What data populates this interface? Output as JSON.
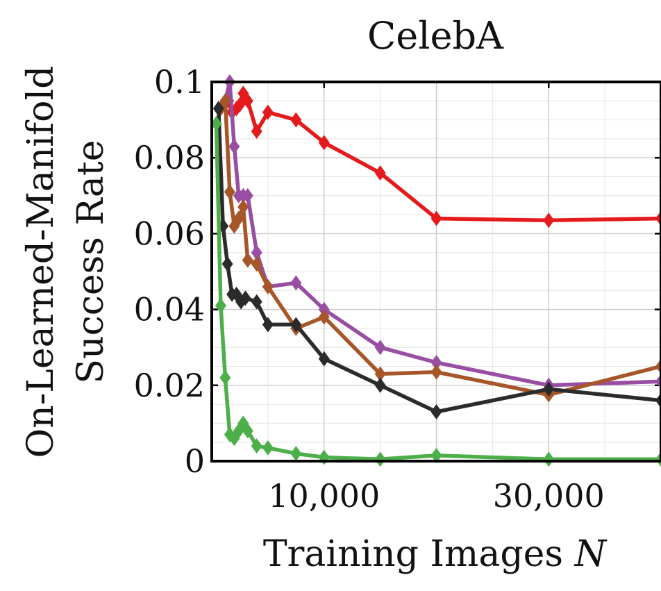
{
  "chart_data": {
    "type": "line",
    "title": "CelebA",
    "xlabel": "Training Images N",
    "ylabel_line1": "On-Learned-Manifold",
    "ylabel_line2": "Success Rate",
    "xlim": [
      0,
      40000
    ],
    "ylim": [
      0,
      0.1
    ],
    "x_ticks": [
      10000,
      30000
    ],
    "x_tick_labels": [
      "10,000",
      "30,000"
    ],
    "y_ticks": [
      0,
      0.02,
      0.04,
      0.06,
      0.08,
      0.1
    ],
    "y_tick_labels": [
      "0",
      "0.02",
      "0.04",
      "0.06",
      "0.08",
      "0.1"
    ],
    "grid": true,
    "marker": "diamond",
    "series": [
      {
        "color": "#e41a1c",
        "x": [
          1500,
          1800,
          2200,
          2500,
          2800,
          3200,
          4000,
          5000,
          7500,
          10000,
          15000,
          20000,
          30000,
          40000
        ],
        "y": [
          0.095,
          0.092,
          0.093,
          0.094,
          0.097,
          0.095,
          0.087,
          0.092,
          0.09,
          0.084,
          0.076,
          0.064,
          0.0635,
          0.064
        ]
      },
      {
        "color": "#984ea3",
        "x": [
          1200,
          1600,
          2000,
          2400,
          2800,
          3200,
          4000,
          5000,
          7500,
          10000,
          15000,
          20000,
          30000,
          40000
        ],
        "y": [
          0.095,
          0.1,
          0.083,
          0.07,
          0.07,
          0.07,
          0.055,
          0.046,
          0.047,
          0.04,
          0.03,
          0.026,
          0.02,
          0.021
        ]
      },
      {
        "color": "#a65628",
        "x": [
          800,
          1200,
          1600,
          2000,
          2400,
          2800,
          3200,
          4000,
          5000,
          7500,
          10000,
          15000,
          20000,
          30000,
          40000
        ],
        "y": [
          0.093,
          0.095,
          0.071,
          0.062,
          0.064,
          0.067,
          0.053,
          0.052,
          0.046,
          0.035,
          0.038,
          0.023,
          0.0235,
          0.0175,
          0.025
        ]
      },
      {
        "color": "#2b2b2b",
        "x": [
          600,
          1000,
          1400,
          1800,
          2200,
          2600,
          3000,
          4000,
          5000,
          7500,
          10000,
          15000,
          20000,
          30000,
          40000
        ],
        "y": [
          0.093,
          0.062,
          0.052,
          0.044,
          0.044,
          0.042,
          0.043,
          0.042,
          0.036,
          0.036,
          0.027,
          0.02,
          0.013,
          0.019,
          0.016
        ]
      },
      {
        "color": "#4daf4a",
        "x": [
          400,
          800,
          1200,
          1600,
          2000,
          2400,
          2800,
          3200,
          4000,
          5000,
          7500,
          10000,
          15000,
          20000,
          30000,
          40000
        ],
        "y": [
          0.089,
          0.041,
          0.022,
          0.007,
          0.006,
          0.008,
          0.01,
          0.008,
          0.004,
          0.0035,
          0.002,
          0.001,
          0.0005,
          0.0015,
          0.0005,
          0.0005
        ]
      }
    ]
  }
}
